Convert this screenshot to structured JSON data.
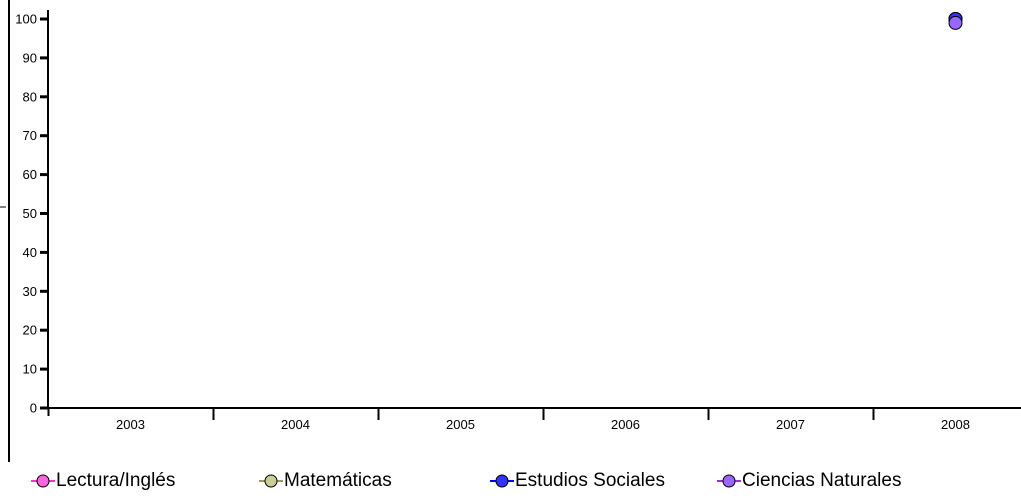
{
  "chart_data": {
    "type": "line",
    "categories": [
      "2003",
      "2004",
      "2005",
      "2006",
      "2007",
      "2008"
    ],
    "y_ticks": [
      "0",
      "10",
      "20",
      "30",
      "40",
      "50",
      "60",
      "70",
      "80",
      "90",
      "100"
    ],
    "ylim": [
      0,
      100
    ],
    "grid": false,
    "legend_position": "bottom",
    "series": [
      {
        "name": "Lectura/Inglés",
        "color": "#ff33cc",
        "marker_color": "#ff66dd",
        "values": [
          null,
          null,
          null,
          null,
          null,
          100
        ]
      },
      {
        "name": "Matemáticas",
        "color": "#999966",
        "marker_color": "#cccc99",
        "values": [
          null,
          null,
          null,
          null,
          null,
          100
        ]
      },
      {
        "name": "Estudios Sociales",
        "color": "#0000ff",
        "marker_color": "#3333ff",
        "values": [
          null,
          null,
          null,
          null,
          null,
          100
        ]
      },
      {
        "name": "Ciencias Naturales",
        "color": "#9933cc",
        "marker_color": "#9966ff",
        "values": [
          null,
          null,
          null,
          null,
          null,
          99
        ]
      }
    ]
  }
}
